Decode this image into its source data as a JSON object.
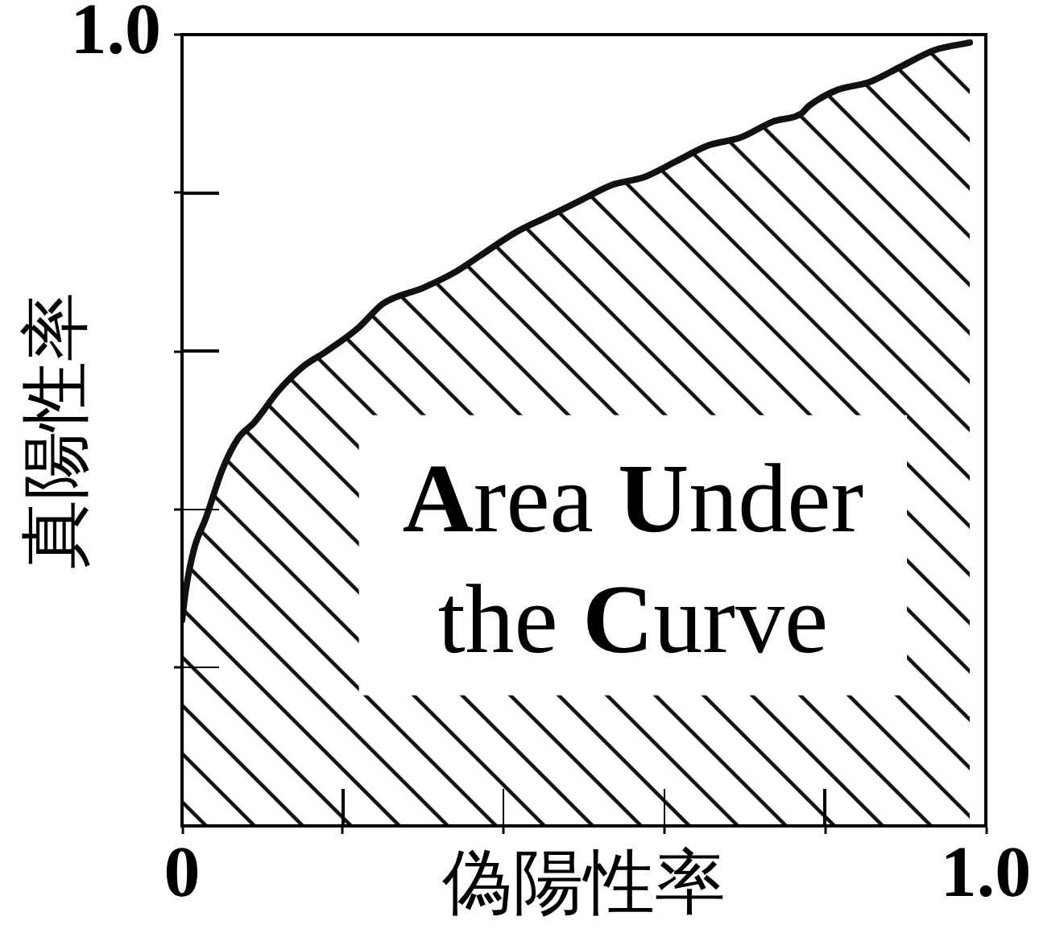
{
  "chart_data": {
    "type": "area",
    "xlabel": "偽陽性率",
    "ylabel": "真陽性率",
    "x": [
      0,
      0.005,
      0.015,
      0.03,
      0.05,
      0.07,
      0.09,
      0.12,
      0.15,
      0.18,
      0.22,
      0.25,
      0.3,
      0.34,
      0.37,
      0.415,
      0.455,
      0.495,
      0.535,
      0.575,
      0.615,
      0.655,
      0.695,
      0.735,
      0.77,
      0.78,
      0.815,
      0.855,
      0.895,
      0.935,
      0.98
    ],
    "values": [
      0.26,
      0.3,
      0.35,
      0.39,
      0.45,
      0.49,
      0.51,
      0.55,
      0.58,
      0.6,
      0.63,
      0.66,
      0.68,
      0.7,
      0.72,
      0.75,
      0.77,
      0.79,
      0.81,
      0.82,
      0.84,
      0.86,
      0.87,
      0.89,
      0.9,
      0.91,
      0.93,
      0.94,
      0.96,
      0.98,
      0.99
    ],
    "color": "#111111",
    "xlim": [
      0,
      1
    ],
    "ylim": [
      0,
      1
    ],
    "xticks": [
      {
        "value": 0,
        "label": "0"
      },
      {
        "value": 0.2,
        "label": null
      },
      {
        "value": 0.4,
        "label": null
      },
      {
        "value": 0.6,
        "label": null
      },
      {
        "value": 0.8,
        "label": null
      },
      {
        "value": 1,
        "label": "1.0"
      }
    ],
    "yticks": [
      {
        "value": 0.2,
        "label": null
      },
      {
        "value": 0.4,
        "label": null
      },
      {
        "value": 0.6,
        "label": null
      },
      {
        "value": 0.8,
        "label": null
      },
      {
        "value": 1,
        "label": "1.0"
      }
    ],
    "marker": "none",
    "annotations": [
      "Area Under the Curve"
    ]
  }
}
